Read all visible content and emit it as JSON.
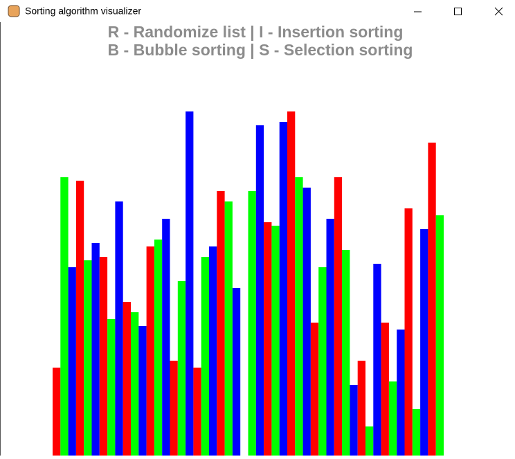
{
  "window": {
    "title": "Sorting algorithm visualizer"
  },
  "instructions": [
    "R - Randomize list | I - Insertion sorting",
    "B - Bubble sorting | S - Selection sorting"
  ],
  "bars": {
    "palette": [
      "#ff0000",
      "#00ff00",
      "#0000ff"
    ],
    "values": [
      127,
      402,
      272,
      397,
      282,
      307,
      287,
      197,
      367,
      222,
      207,
      187,
      302,
      312,
      342,
      137,
      252,
      497,
      127,
      287,
      302,
      382,
      367,
      242,
      0,
      382,
      477,
      337,
      332,
      482,
      497,
      402,
      387,
      192,
      272,
      342,
      402,
      297,
      102,
      137,
      42,
      277,
      192,
      107,
      182,
      357,
      67,
      327,
      452,
      347
    ]
  }
}
